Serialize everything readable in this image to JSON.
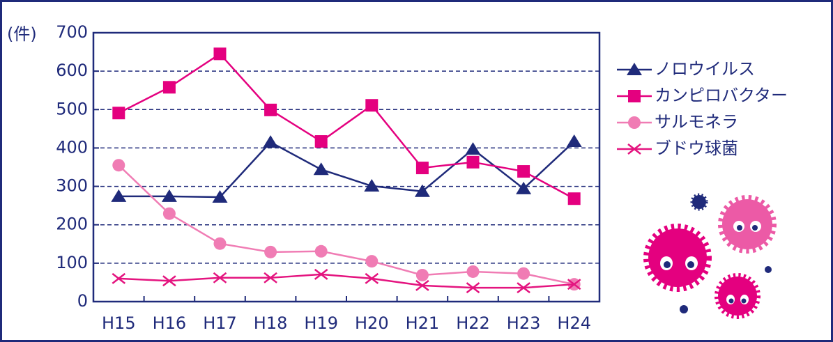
{
  "chart_data": {
    "type": "line",
    "y_label": "(件)",
    "categories": [
      "H15",
      "H16",
      "H17",
      "H18",
      "H19",
      "H20",
      "H21",
      "H22",
      "H23",
      "H24"
    ],
    "series": [
      {
        "name": "ノロウイルス",
        "color": "#1f2a7a",
        "marker": "triangle",
        "values": [
          274,
          274,
          272,
          415,
          344,
          301,
          287,
          397,
          294,
          417
        ]
      },
      {
        "name": "カンピロバクター",
        "color": "#e4007f",
        "marker": "square",
        "values": [
          491,
          558,
          645,
          499,
          417,
          511,
          348,
          363,
          339,
          268
        ]
      },
      {
        "name": "サルモネラ",
        "color": "#f07cb4",
        "marker": "circle",
        "values": [
          355,
          229,
          151,
          129,
          131,
          105,
          69,
          78,
          73,
          45
        ]
      },
      {
        "name": "ブドウ球菌",
        "color": "#e4147f",
        "marker": "x",
        "values": [
          60,
          54,
          62,
          62,
          71,
          60,
          42,
          36,
          36,
          45
        ]
      }
    ],
    "ylim": [
      0,
      700
    ],
    "yticks": [
      0,
      100,
      200,
      300,
      400,
      500,
      600,
      700
    ],
    "grid": true,
    "legend": "right"
  }
}
